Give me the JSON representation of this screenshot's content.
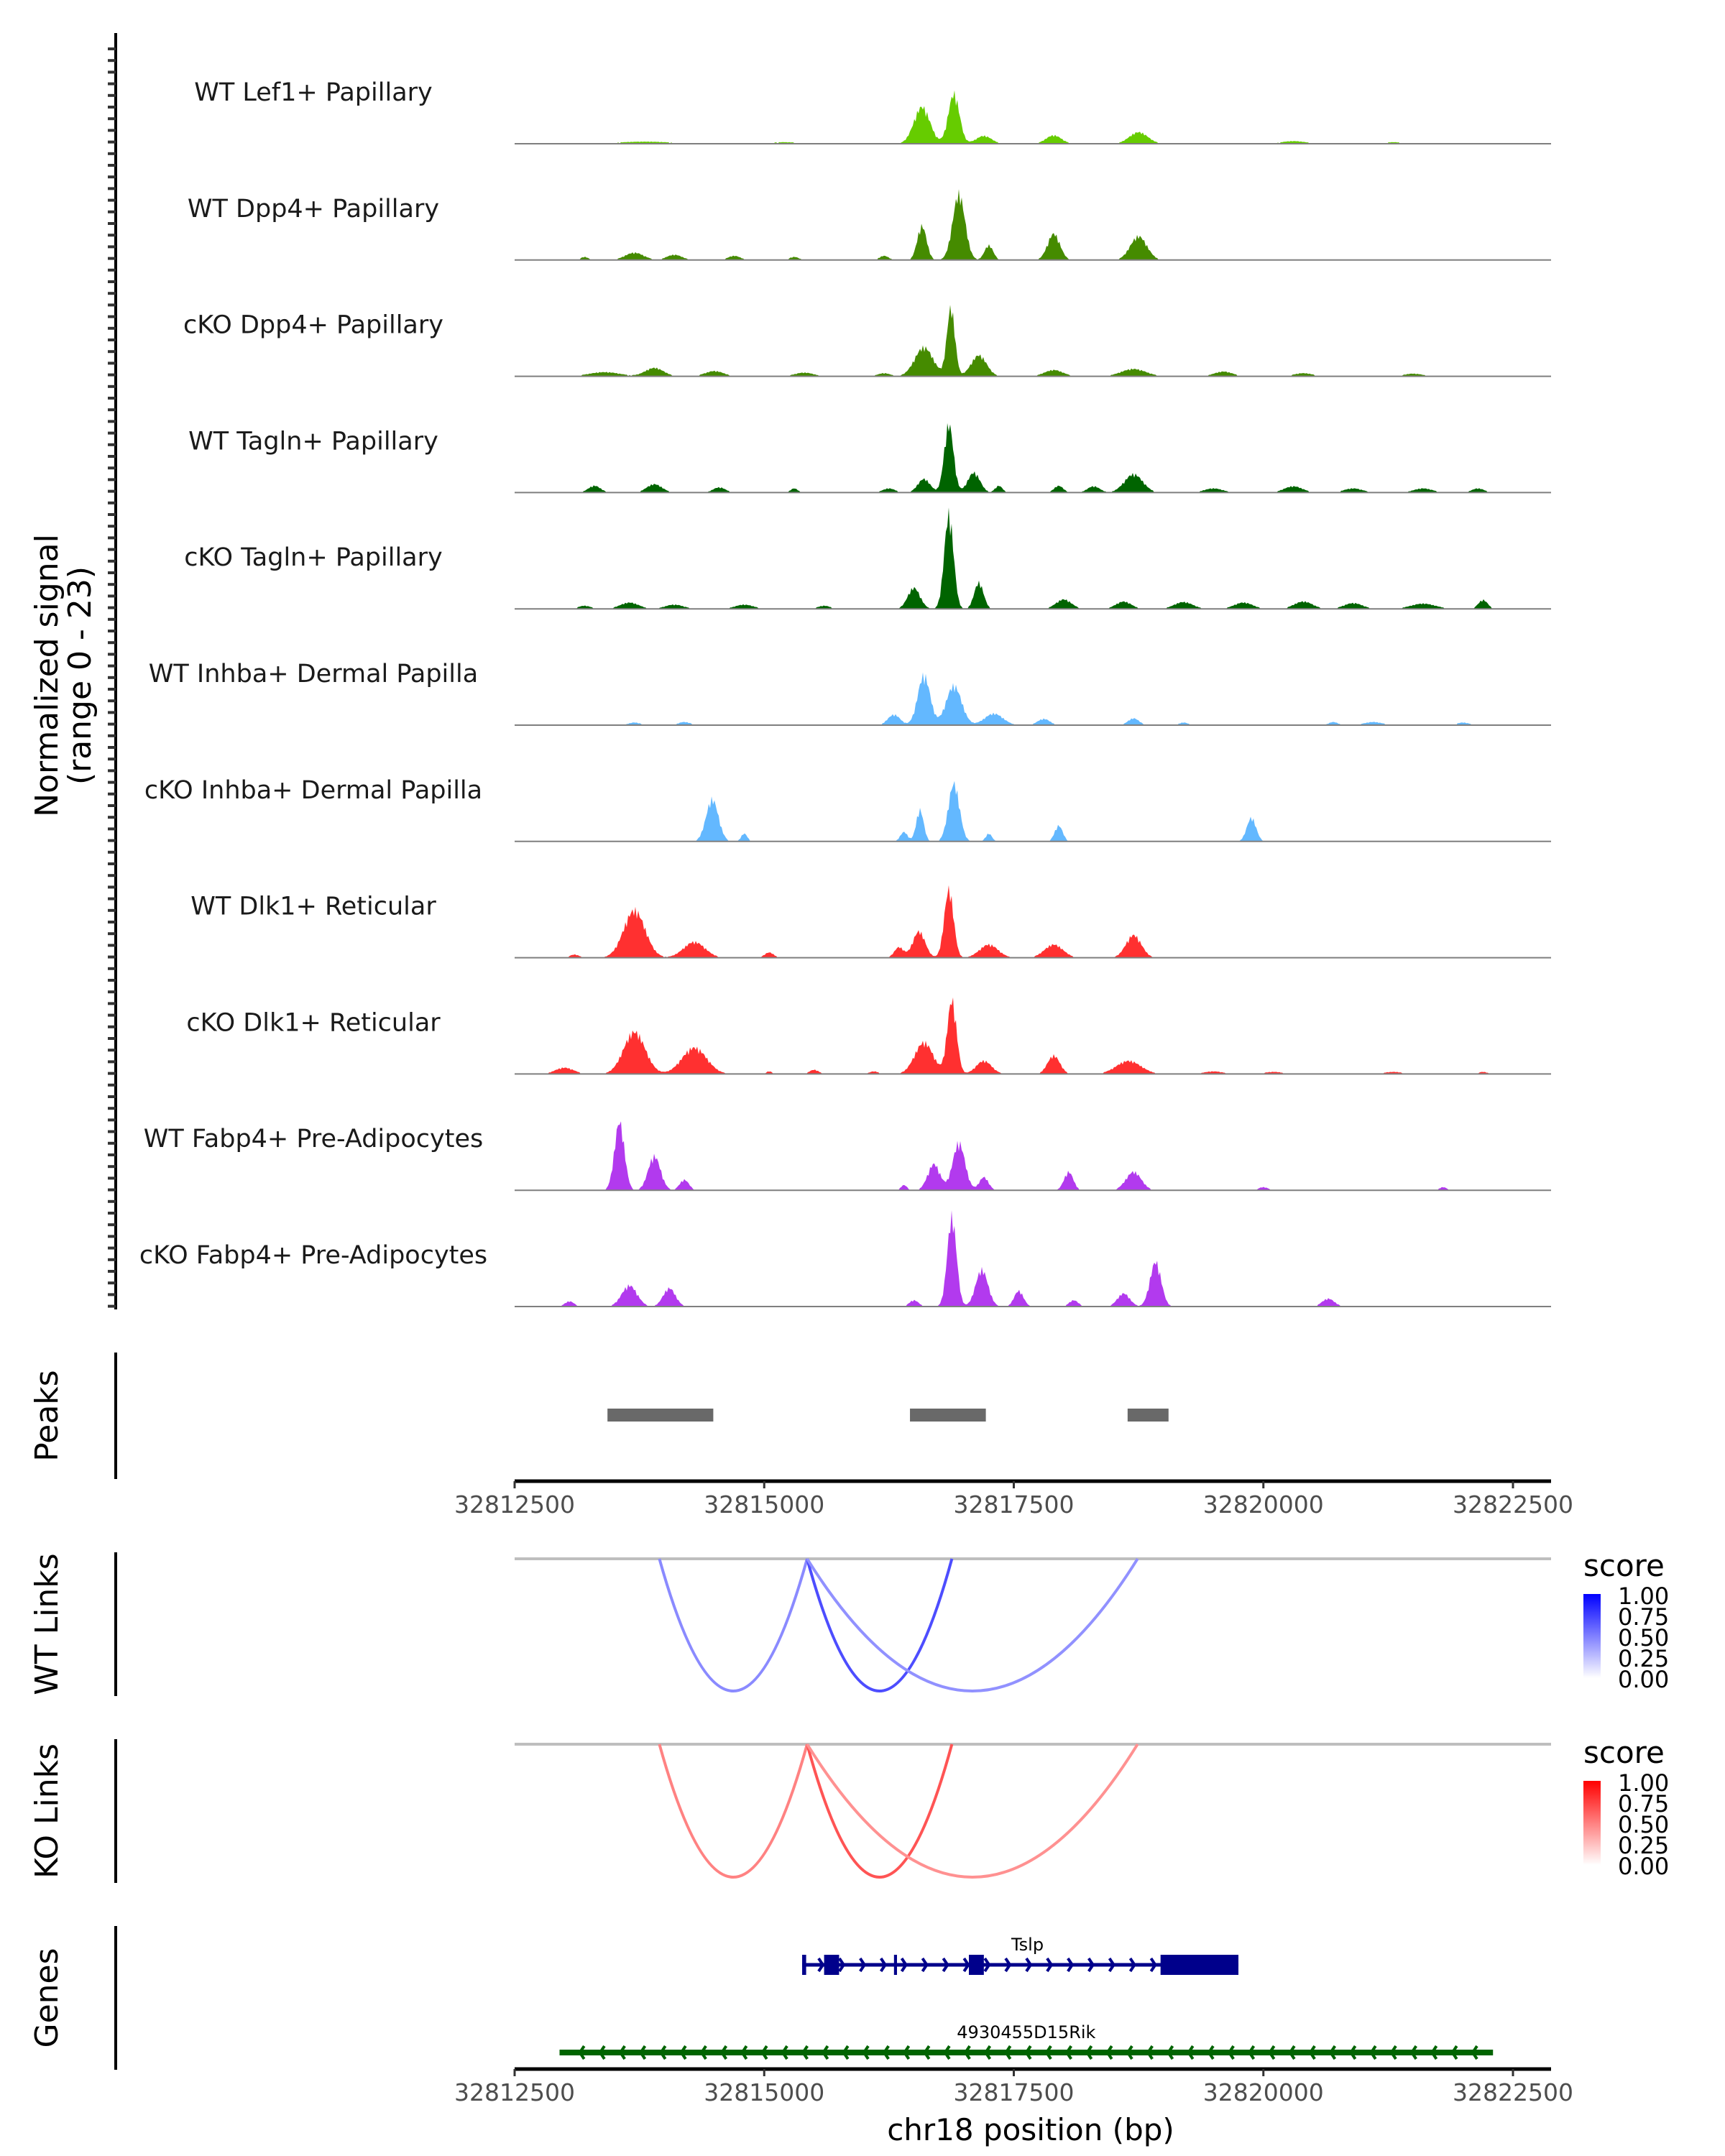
{
  "chart_data": {
    "type": "area",
    "title": "",
    "ylabel": "Normalized signal\n(range 0 - 23)",
    "ylabel_lines": [
      "Normalized signal",
      "(range 0 - 23)"
    ],
    "ylim": [
      0,
      23
    ],
    "xlabel": "chr18 position (bp)",
    "xlim": [
      32812300,
      32822650
    ],
    "x_ticks": [
      32812500,
      32815000,
      32817500,
      32820000,
      32822500
    ],
    "x_tick_labels": [
      "32812500",
      "32815000",
      "32817500",
      "32820000",
      "32822500"
    ],
    "coverage_tracks": [
      {
        "name": "WT Lef1+ Papillary",
        "color": "#66CC00",
        "peaks": [
          [
            32813800,
            0.4,
            900
          ],
          [
            32815200,
            0.3,
            500
          ],
          [
            32816580,
            7,
            260
          ],
          [
            32816900,
            9.5,
            180
          ],
          [
            32817200,
            1.5,
            250
          ],
          [
            32817900,
            1.6,
            250
          ],
          [
            32818750,
            2.2,
            300
          ],
          [
            32820300,
            0.5,
            400
          ],
          [
            32821300,
            0.3,
            300
          ]
        ]
      },
      {
        "name": "WT Dpp4+ Papillary",
        "color": "#458B00",
        "peaks": [
          [
            32813200,
            0.6,
            120
          ],
          [
            32813700,
            1.4,
            300
          ],
          [
            32814100,
            1.0,
            250
          ],
          [
            32814700,
            0.8,
            200
          ],
          [
            32815300,
            0.6,
            150
          ],
          [
            32816200,
            0.8,
            150
          ],
          [
            32816580,
            6.5,
            150
          ],
          [
            32816950,
            12.5,
            200
          ],
          [
            32817250,
            2.8,
            140
          ],
          [
            32817900,
            5,
            200
          ],
          [
            32818750,
            4.5,
            270
          ]
        ]
      },
      {
        "name": "cKO Dpp4+ Papillary",
        "color": "#458B00",
        "peaks": [
          [
            32813400,
            0.8,
            500
          ],
          [
            32813900,
            1.6,
            300
          ],
          [
            32814500,
            1.0,
            300
          ],
          [
            32815400,
            0.7,
            300
          ],
          [
            32816200,
            0.6,
            200
          ],
          [
            32816600,
            5.5,
            300
          ],
          [
            32816870,
            13,
            130
          ],
          [
            32817150,
            4.0,
            250
          ],
          [
            32817900,
            1.2,
            300
          ],
          [
            32818700,
            1.4,
            400
          ],
          [
            32819600,
            0.9,
            300
          ],
          [
            32820400,
            0.6,
            300
          ],
          [
            32821500,
            0.5,
            300
          ]
        ]
      },
      {
        "name": "WT Tagln+ Papillary",
        "color": "#006400",
        "peaks": [
          [
            32813300,
            1.3,
            200
          ],
          [
            32813900,
            1.6,
            250
          ],
          [
            32814550,
            1.0,
            200
          ],
          [
            32815300,
            0.8,
            120
          ],
          [
            32816250,
            0.8,
            200
          ],
          [
            32816600,
            2.6,
            200
          ],
          [
            32816850,
            13,
            150
          ],
          [
            32817100,
            3.8,
            200
          ],
          [
            32817350,
            1.3,
            120
          ],
          [
            32817950,
            1.3,
            150
          ],
          [
            32818300,
            1.2,
            200
          ],
          [
            32818700,
            3.5,
            300
          ],
          [
            32819500,
            0.8,
            300
          ],
          [
            32820300,
            1.2,
            300
          ],
          [
            32820900,
            0.8,
            300
          ],
          [
            32821600,
            0.8,
            300
          ],
          [
            32822150,
            0.8,
            200
          ]
        ]
      },
      {
        "name": "cKO Tagln+ Papillary",
        "color": "#006400",
        "peaks": [
          [
            32813200,
            0.6,
            200
          ],
          [
            32813650,
            1.2,
            300
          ],
          [
            32814100,
            0.8,
            300
          ],
          [
            32814800,
            0.8,
            300
          ],
          [
            32815600,
            0.6,
            200
          ],
          [
            32816500,
            4,
            200
          ],
          [
            32816850,
            18,
            150
          ],
          [
            32817150,
            5,
            150
          ],
          [
            32818000,
            1.8,
            250
          ],
          [
            32818600,
            1.4,
            250
          ],
          [
            32819200,
            1.3,
            300
          ],
          [
            32819800,
            1.2,
            300
          ],
          [
            32820400,
            1.4,
            300
          ],
          [
            32820900,
            1.1,
            300
          ],
          [
            32821600,
            1.0,
            400
          ],
          [
            32822200,
            1.7,
            150
          ]
        ]
      },
      {
        "name": "WT Inhba+ Dermal Papilla",
        "color": "#63B8FF",
        "peaks": [
          [
            32813700,
            0.5,
            200
          ],
          [
            32814200,
            0.6,
            200
          ],
          [
            32816300,
            2.0,
            200
          ],
          [
            32816600,
            9.5,
            200
          ],
          [
            32816900,
            7.5,
            250
          ],
          [
            32817300,
            2.2,
            300
          ],
          [
            32817800,
            1.2,
            200
          ],
          [
            32818700,
            1.3,
            180
          ],
          [
            32819200,
            0.5,
            150
          ],
          [
            32820700,
            0.6,
            150
          ],
          [
            32821100,
            0.6,
            300
          ],
          [
            32822000,
            0.5,
            200
          ]
        ]
      },
      {
        "name": "cKO Inhba+ Dermal Papilla",
        "color": "#63B8FF",
        "peaks": [
          [
            32814480,
            8,
            200
          ],
          [
            32814800,
            1.5,
            100
          ],
          [
            32816400,
            1.8,
            120
          ],
          [
            32816560,
            6,
            120
          ],
          [
            32816900,
            11,
            180
          ],
          [
            32817250,
            1.5,
            100
          ],
          [
            32817950,
            3.0,
            130
          ],
          [
            32819880,
            4.5,
            150
          ]
        ]
      },
      {
        "name": "WT Dlk1+ Reticular",
        "color": "#FF3030",
        "peaks": [
          [
            32813100,
            0.6,
            150
          ],
          [
            32813700,
            9,
            350
          ],
          [
            32814300,
            3,
            350
          ],
          [
            32815050,
            1.0,
            150
          ],
          [
            32816350,
            2.0,
            150
          ],
          [
            32816550,
            5,
            200
          ],
          [
            32816850,
            13,
            150
          ],
          [
            32817250,
            2.5,
            300
          ],
          [
            32817900,
            2.5,
            300
          ],
          [
            32818700,
            4.3,
            250
          ]
        ]
      },
      {
        "name": "cKO Dlk1+ Reticular",
        "color": "#FF3030",
        "peaks": [
          [
            32813000,
            1.2,
            300
          ],
          [
            32813700,
            8,
            350
          ],
          [
            32814300,
            5,
            400
          ],
          [
            32815050,
            0.5,
            100
          ],
          [
            32815500,
            0.8,
            150
          ],
          [
            32816100,
            0.5,
            150
          ],
          [
            32816600,
            6,
            300
          ],
          [
            32816880,
            14,
            150
          ],
          [
            32817200,
            2.5,
            250
          ],
          [
            32817900,
            3.5,
            200
          ],
          [
            32818650,
            2.5,
            400
          ],
          [
            32819500,
            0.5,
            300
          ],
          [
            32820100,
            0.4,
            300
          ],
          [
            32821300,
            0.4,
            300
          ],
          [
            32822200,
            0.4,
            150
          ]
        ]
      },
      {
        "name": "WT Fabp4+ Pre-Adipocytes",
        "color": "#B23AEE",
        "peaks": [
          [
            32813550,
            13,
            160
          ],
          [
            32813900,
            6.5,
            200
          ],
          [
            32814200,
            2,
            150
          ],
          [
            32816400,
            1.0,
            100
          ],
          [
            32816700,
            5,
            200
          ],
          [
            32816950,
            9,
            200
          ],
          [
            32817200,
            2.5,
            150
          ],
          [
            32818050,
            3.5,
            150
          ],
          [
            32818700,
            3.5,
            250
          ],
          [
            32820000,
            0.6,
            150
          ],
          [
            32821800,
            0.6,
            120
          ]
        ]
      },
      {
        "name": "cKO Fabp4+ Pre-Adipocytes",
        "color": "#B23AEE",
        "peaks": [
          [
            32813050,
            1.0,
            150
          ],
          [
            32813650,
            4,
            250
          ],
          [
            32814050,
            3.5,
            200
          ],
          [
            32816500,
            1.2,
            150
          ],
          [
            32816880,
            17,
            150
          ],
          [
            32817180,
            7,
            200
          ],
          [
            32817550,
            3,
            150
          ],
          [
            32818100,
            1.2,
            150
          ],
          [
            32818600,
            2.5,
            200
          ],
          [
            32818920,
            8.5,
            180
          ],
          [
            32820650,
            1.5,
            200
          ]
        ]
      }
    ],
    "peaks_track": {
      "label": "Peaks",
      "color": "#696969",
      "regions": [
        [
          32813430,
          32814490
        ],
        [
          32816460,
          32817220
        ],
        [
          32818640,
          32819050
        ]
      ]
    },
    "links_tracks": [
      {
        "label": "WT Links",
        "legend_title": "score",
        "legend_ticks": [
          "1.00",
          "0.75",
          "0.50",
          "0.25",
          "0.00"
        ],
        "scale_low": "#FFFFFF",
        "scale_high": "#0000FF",
        "links": [
          {
            "start": 32813950,
            "end": 32815430,
            "score": 0.35
          },
          {
            "start": 32815430,
            "end": 32816880,
            "score": 0.75
          },
          {
            "start": 32815430,
            "end": 32818740,
            "score": 0.3
          }
        ]
      },
      {
        "label": "KO Links",
        "legend_title": "score",
        "legend_ticks": [
          "1.00",
          "0.75",
          "0.50",
          "0.25",
          "0.00"
        ],
        "scale_low": "#FFFFFF",
        "scale_high": "#FF0000",
        "links": [
          {
            "start": 32813950,
            "end": 32815430,
            "score": 0.4
          },
          {
            "start": 32815430,
            "end": 32816880,
            "score": 0.7
          },
          {
            "start": 32815430,
            "end": 32818740,
            "score": 0.3
          }
        ]
      }
    ],
    "genes_track": {
      "label": "Genes",
      "genes": [
        {
          "name": "Tslp",
          "strand": "+",
          "color": "#00008B",
          "start": 32815380,
          "end": 32819750,
          "exons": [
            [
              32815380,
              32815420
            ],
            [
              32815600,
              32815750
            ],
            [
              32816300,
              32816330
            ],
            [
              32817050,
              32817200
            ],
            [
              32818970,
              32819750
            ]
          ]
        },
        {
          "name": "4930455D15Rik",
          "strand": "-",
          "color": "#006400",
          "start": 32812950,
          "end": 32822300,
          "exons": []
        }
      ]
    }
  }
}
